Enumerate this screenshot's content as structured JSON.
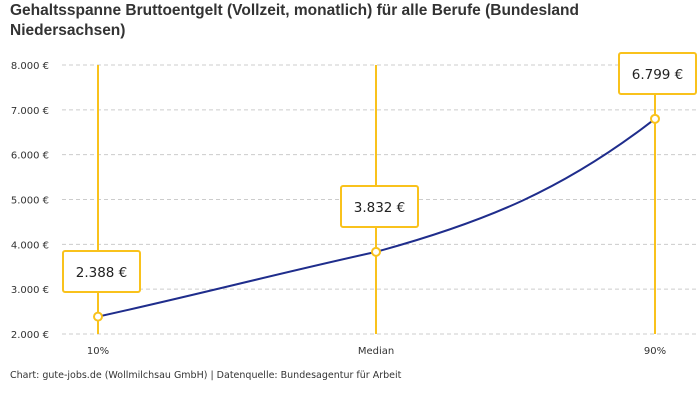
{
  "chart_data": {
    "type": "line",
    "title": "Gehaltsspanne Bruttoentgelt (Vollzeit, monatlich) für alle Berufe (Bundesland Niedersachsen)",
    "categories": [
      "10%",
      "Median",
      "90%"
    ],
    "values": [
      2388,
      3832,
      6799
    ],
    "data_labels": [
      "2.388 €",
      "3.832 €",
      "6.799 €"
    ],
    "ylim": [
      2000,
      8000
    ],
    "yticks": [
      2000,
      3000,
      4000,
      5000,
      6000,
      7000,
      8000
    ],
    "ytick_labels": [
      "2.000 €",
      "3.000 €",
      "4.000 €",
      "5.000 €",
      "6.000 €",
      "7.000 €",
      "8.000 €"
    ],
    "grid": true,
    "colors": {
      "line": "#1f2d8c",
      "marker": "#f9c21c",
      "grid": "#cccccc"
    }
  },
  "source": "Chart: gute-jobs.de (Wollmilchsau GmbH) | Datenquelle: Bundesagentur für Arbeit"
}
